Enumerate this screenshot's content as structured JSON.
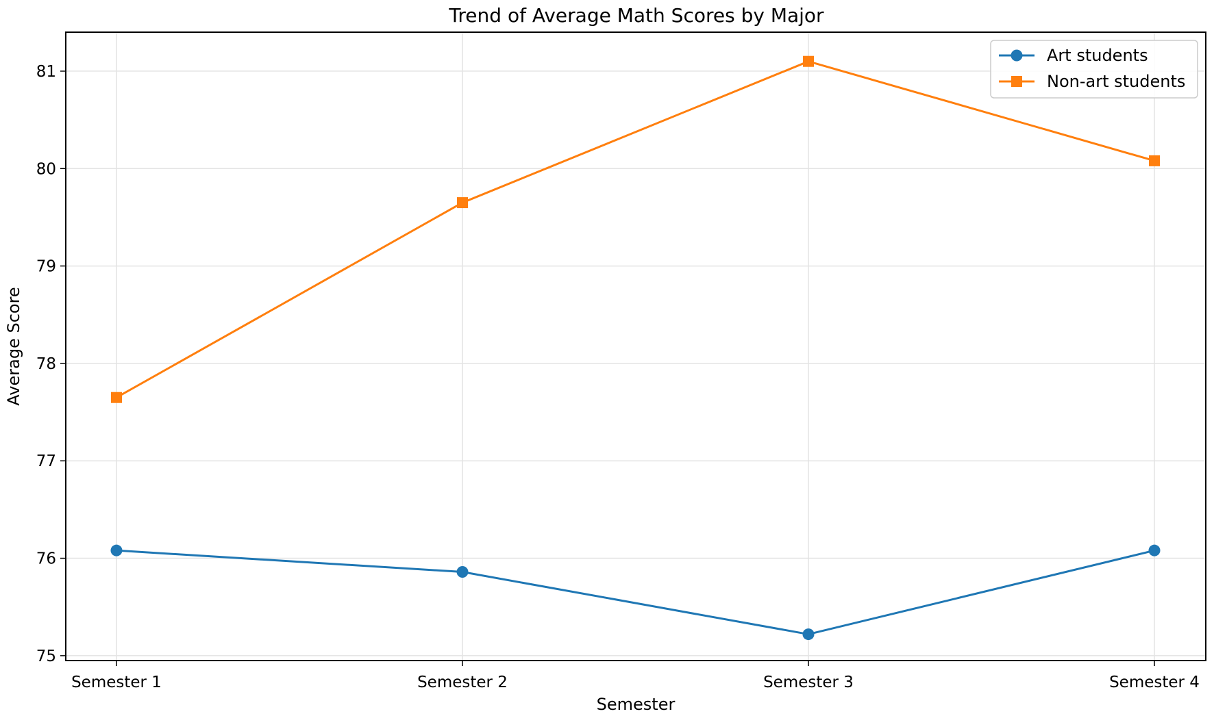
{
  "chart_data": {
    "type": "line",
    "title": "Trend of Average Math Scores by Major",
    "xlabel": "Semester",
    "ylabel": "Average Score",
    "categories": [
      "Semester 1",
      "Semester 2",
      "Semester 3",
      "Semester 4"
    ],
    "ylim": [
      74.95,
      81.4
    ],
    "yticks": [
      75,
      76,
      77,
      78,
      79,
      80,
      81
    ],
    "grid": true,
    "legend_position": "top-right",
    "series": [
      {
        "name": "Art students",
        "values": [
          76.08,
          75.86,
          75.22,
          76.08
        ],
        "color": "#1f77b4",
        "marker": "circle"
      },
      {
        "name": "Non-art students",
        "values": [
          77.65,
          79.65,
          81.1,
          80.08
        ],
        "color": "#ff7f0e",
        "marker": "square"
      }
    ]
  }
}
